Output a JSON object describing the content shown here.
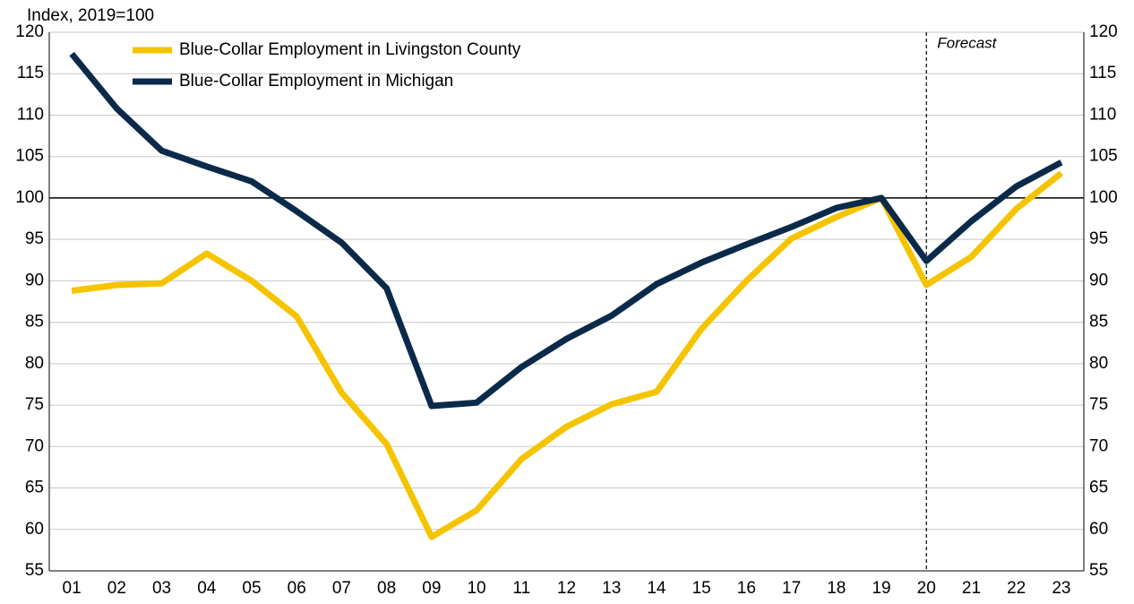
{
  "chart_data": {
    "type": "line",
    "y_axis_label": "Index, 2019=100",
    "categories": [
      "01",
      "02",
      "03",
      "04",
      "05",
      "06",
      "07",
      "08",
      "09",
      "10",
      "11",
      "12",
      "13",
      "14",
      "15",
      "16",
      "17",
      "18",
      "19",
      "20",
      "21",
      "22",
      "23"
    ],
    "series": [
      {
        "name": "Blue-Collar Employment in Livingston County",
        "color": "#f5c400",
        "values": [
          88.8,
          89.5,
          89.7,
          93.3,
          90.0,
          85.7,
          76.5,
          70.3,
          59.1,
          62.3,
          68.5,
          72.4,
          75.1,
          76.6,
          84.2,
          90.0,
          95.1,
          97.7,
          100,
          89.5,
          92.9,
          98.7,
          103.0
        ]
      },
      {
        "name": "Blue-Collar Employment in Michigan",
        "color": "#0b2a4a",
        "values": [
          117.4,
          110.8,
          105.7,
          103.8,
          102.0,
          98.4,
          94.6,
          89.1,
          74.9,
          75.3,
          79.6,
          83.0,
          85.8,
          89.6,
          92.2,
          94.4,
          96.5,
          98.8,
          100,
          92.4,
          97.2,
          101.4,
          104.3
        ]
      }
    ],
    "ylim": [
      55,
      120
    ],
    "yticks": [
      55,
      60,
      65,
      70,
      75,
      80,
      85,
      90,
      95,
      100,
      105,
      110,
      115,
      120
    ],
    "y2lim": [
      55,
      120
    ],
    "y2ticks": [
      55,
      60,
      65,
      70,
      75,
      80,
      85,
      90,
      95,
      100,
      105,
      110,
      115,
      120
    ],
    "grid": true,
    "reference_line": 100,
    "annotation": {
      "text": "Forecast",
      "x": "20"
    },
    "legend": "top-left"
  }
}
